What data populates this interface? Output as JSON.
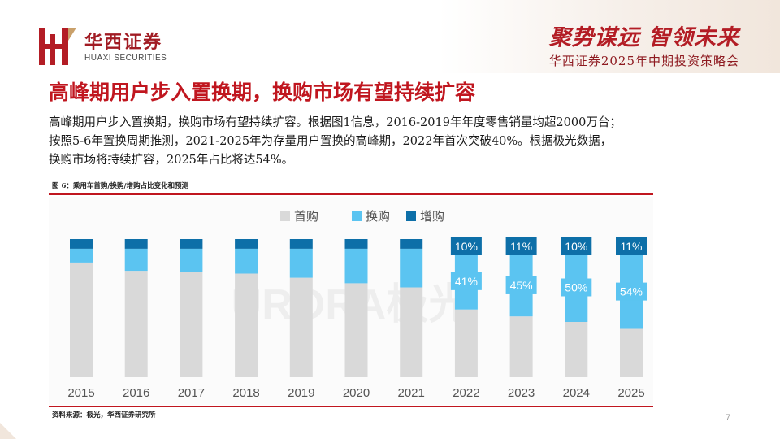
{
  "header": {
    "logo_cn": "华西证券",
    "logo_en": "HUAXI SECURITIES",
    "slogan": "聚势谋远 智领未来",
    "conference": "华西证券2025年中期投资策略会",
    "colors": {
      "brand_red": "#b31d25",
      "gold": "#c9a06a"
    }
  },
  "slide": {
    "title": "高峰期用户步入置换期，换购市场有望持续扩容",
    "body_lines": [
      "高峰期用户步入置换期，换购市场有望持续扩容。根据图1信息，2016-2019年年度零售销量均超2000万台；",
      "按照5-6年置换周期推测，2021-2025年为存量用户置换的高峰期，2022年首次突破40%。根据极光数据，",
      "换购市场将持续扩容，2025年占比将达54%。"
    ],
    "page_number": "7"
  },
  "figure": {
    "caption": "图 6：乘用车首购/换购/增购占比变化和预测",
    "source": "资料来源：极光，华西证券研究所",
    "watermark": "URORA极光"
  },
  "chart_data": {
    "type": "bar",
    "stacked": true,
    "ylim": [
      0,
      100
    ],
    "categories": [
      "2015",
      "2016",
      "2017",
      "2018",
      "2019",
      "2020",
      "2021",
      "2022",
      "2023",
      "2024",
      "2025"
    ],
    "series": [
      {
        "name": "首购",
        "color": "#d9d9d9",
        "values": [
          83,
          77,
          76,
          75,
          72,
          68,
          65,
          49,
          44,
          40,
          35
        ]
      },
      {
        "name": "换购",
        "color": "#5bc4f1",
        "values": [
          10,
          16,
          17,
          18,
          21,
          25,
          28,
          41,
          45,
          50,
          54
        ]
      },
      {
        "name": "增购",
        "color": "#0d6fa8",
        "values": [
          7,
          7,
          7,
          7,
          7,
          7,
          7,
          10,
          11,
          10,
          11
        ]
      }
    ],
    "data_labels": {
      "换购": [
        "",
        "",
        "",
        "",
        "",
        "",
        "",
        "41%",
        "45%",
        "50%",
        "54%"
      ],
      "增购": [
        "",
        "",
        "",
        "",
        "",
        "",
        "",
        "10%",
        "11%",
        "10%",
        "11%"
      ]
    },
    "legend": "top",
    "grid": false
  }
}
